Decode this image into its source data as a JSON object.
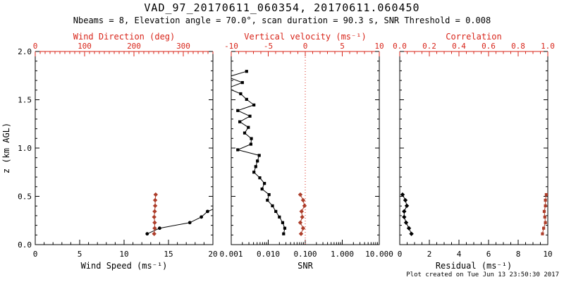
{
  "chart_data": {
    "type": "line",
    "title": "VAD_97_20170611_060354, 20170611.060450",
    "subtitle": "Nbeams = 8, Elevation angle = 70.0°, scan duration = 90.3 s, SNR Threshold = 0.008",
    "footer": "Plot created on Tue Jun 13 23:50:30 2017",
    "grid": false,
    "legend": "none",
    "colors": {
      "black": "#000000",
      "axis_red": "#d8251a",
      "marker_red": "#ad3d2a",
      "background": "#ffffff"
    },
    "y_axis": {
      "label": "z (km AGL)",
      "lim": [
        0,
        2
      ],
      "ticks": [
        0,
        0.5,
        1,
        1.5,
        2
      ],
      "tick_labels": [
        "0.0",
        "0.5",
        "1.0",
        "1.5",
        "2.0"
      ],
      "minor_step": 0.1
    },
    "panels": [
      {
        "name": "wind",
        "top_axis": {
          "label": "Wind Direction (deg)",
          "lim": [
            0,
            360
          ],
          "ticks": [
            0,
            100,
            200,
            300
          ],
          "tick_labels": [
            "0",
            "100",
            "200",
            "300"
          ],
          "minor_step": 10
        },
        "bottom_axis": {
          "label": "Wind Speed (ms⁻¹)",
          "lim": [
            0,
            20
          ],
          "ticks": [
            0,
            5,
            10,
            15,
            20
          ],
          "tick_labels": [
            "0",
            "5",
            "10",
            "15",
            "20"
          ],
          "minor_step": 1
        },
        "series": [
          {
            "name": "wind-speed",
            "axis": "bottom",
            "color": "black",
            "marker": "circle",
            "z": [
              0.112,
              0.17,
              0.228,
              0.286,
              0.344,
              0.402
            ],
            "v": [
              12.6,
              14.0,
              17.4,
              18.7,
              19.4,
              21.0
            ]
          },
          {
            "name": "wind-direction",
            "axis": "top",
            "color": "red",
            "marker": "diamond",
            "z": [
              0.112,
              0.17,
              0.228,
              0.286,
              0.344,
              0.402,
              0.46,
              0.518
            ],
            "v": [
              241,
              242,
              242,
              241,
              242,
              243,
              243,
              244
            ]
          }
        ]
      },
      {
        "name": "snr",
        "top_axis": {
          "label": "Vertical velocity (ms⁻¹)",
          "lim": [
            -10,
            10
          ],
          "ticks": [
            -10,
            -5,
            0,
            5,
            10
          ],
          "tick_labels": [
            "-10",
            "-5",
            "0",
            "5",
            "10"
          ],
          "minor_step": 1
        },
        "bottom_axis": {
          "label": "SNR",
          "lim": [
            0.001,
            10
          ],
          "log": true,
          "ticks": [
            0.001,
            0.01,
            0.1,
            1,
            10
          ],
          "tick_labels": [
            "0.001",
            "0.010",
            "0.100",
            "1.000",
            "10.000"
          ]
        },
        "ref_line": {
          "axis": "top",
          "value": 0,
          "style": "dotted"
        },
        "series": [
          {
            "name": "snr-profile",
            "axis": "bottom",
            "color": "black",
            "marker": "square",
            "z": [
              0.112,
              0.17,
              0.228,
              0.286,
              0.344,
              0.402,
              0.46,
              0.518,
              0.576,
              0.634,
              0.692,
              0.75,
              0.808,
              0.866,
              0.924,
              0.982,
              1.04,
              1.098,
              1.156,
              1.214,
              1.272,
              1.33,
              1.388,
              1.446,
              1.504,
              1.562,
              1.62,
              1.678,
              1.736,
              1.794
            ],
            "v": [
              0.026,
              0.028,
              0.0245,
              0.02,
              0.016,
              0.013,
              0.0095,
              0.0105,
              0.0068,
              0.0079,
              0.0059,
              0.0041,
              0.0046,
              0.0051,
              0.0057,
              0.0015,
              0.0034,
              0.0035,
              0.0023,
              0.0029,
              0.0017,
              0.0032,
              0.0015,
              0.0041,
              0.0026,
              0.0018,
              0.0008,
              0.002,
              0.0008,
              0.0026
            ]
          },
          {
            "name": "vertical-velocity",
            "axis": "top",
            "color": "red",
            "marker": "diamond",
            "z": [
              0.112,
              0.17,
              0.228,
              0.286,
              0.344,
              0.402,
              0.46,
              0.518
            ],
            "v": [
              -0.57,
              -0.29,
              -0.67,
              -0.41,
              -0.5,
              -0.1,
              -0.29,
              -0.67
            ]
          }
        ]
      },
      {
        "name": "residual",
        "top_axis": {
          "label": "Correlation",
          "lim": [
            0,
            1
          ],
          "ticks": [
            0,
            0.2,
            0.4,
            0.6,
            0.8,
            1.0
          ],
          "tick_labels": [
            "0.0",
            "0.2",
            "0.4",
            "0.6",
            "0.8",
            "1.0"
          ],
          "minor_step": 0.05
        },
        "bottom_axis": {
          "label": "Residual (ms⁻¹)",
          "lim": [
            0,
            10
          ],
          "ticks": [
            0,
            2,
            4,
            6,
            8,
            10
          ],
          "tick_labels": [
            "0",
            "2",
            "4",
            "6",
            "8",
            "10"
          ],
          "minor_step": 0.5
        },
        "series": [
          {
            "name": "residual",
            "axis": "bottom",
            "color": "black",
            "marker": "diamond",
            "z": [
              0.112,
              0.17,
              0.228,
              0.286,
              0.344,
              0.402,
              0.46,
              0.518
            ],
            "v": [
              0.79,
              0.62,
              0.43,
              0.3,
              0.3,
              0.48,
              0.38,
              0.19
            ]
          },
          {
            "name": "correlation",
            "axis": "top",
            "color": "red",
            "marker": "square",
            "z": [
              0.112,
              0.17,
              0.228,
              0.286,
              0.344,
              0.402,
              0.46,
              0.518
            ],
            "v": [
              0.964,
              0.972,
              0.984,
              0.98,
              0.976,
              0.984,
              0.984,
              0.99
            ]
          }
        ]
      }
    ]
  }
}
